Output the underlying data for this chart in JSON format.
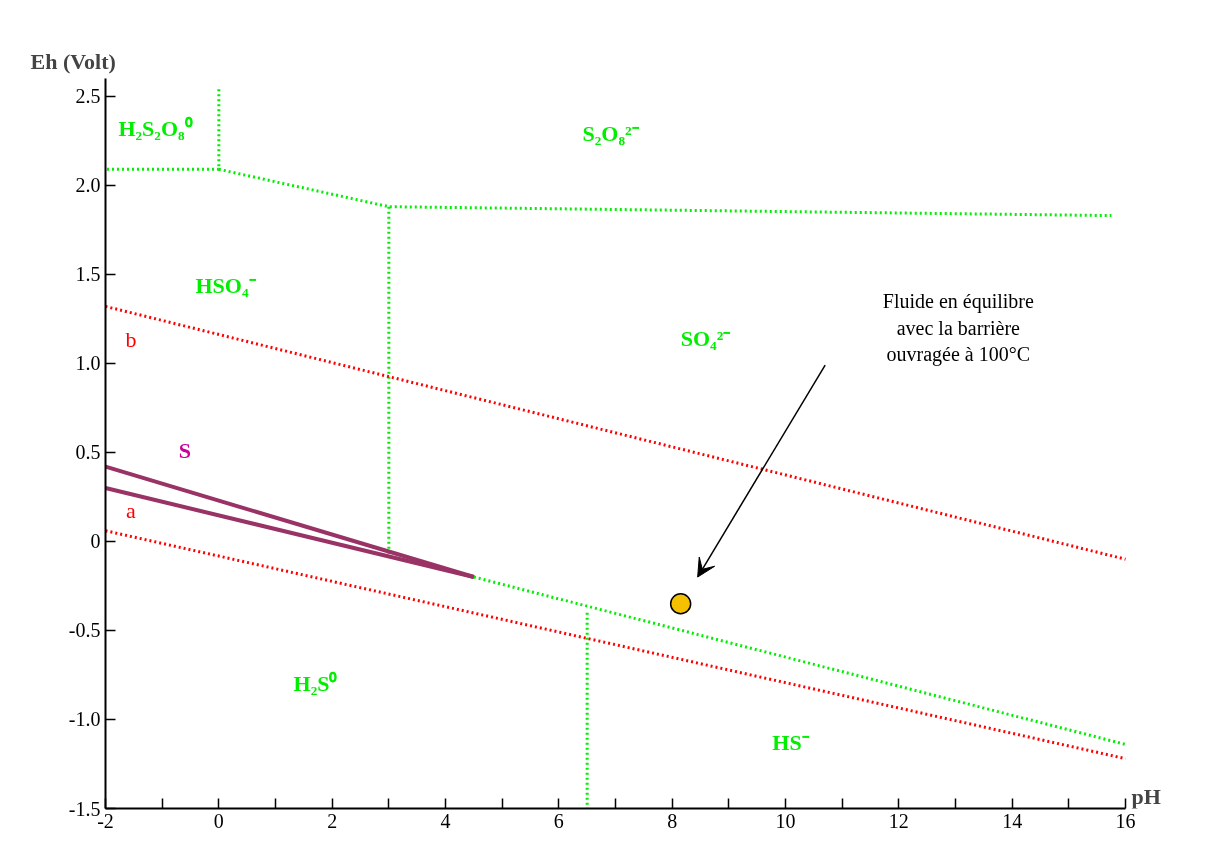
{
  "chart_data": {
    "type": "line",
    "xlabel": "pH",
    "ylabel": "Eh (Volt)",
    "xlim": [
      -2,
      16
    ],
    "ylim": [
      -1.5,
      2.6
    ],
    "xticks": [
      -2,
      {
        "value": -1,
        "label": null
      },
      0,
      {
        "value": 1,
        "label": null
      },
      2,
      {
        "value": 3,
        "label": null
      },
      4,
      {
        "value": 5,
        "label": null
      },
      6,
      {
        "value": 7,
        "label": null
      },
      8,
      {
        "value": 9,
        "label": null
      },
      10,
      {
        "value": 11,
        "label": null
      },
      12,
      {
        "value": 13,
        "label": null
      },
      14,
      {
        "value": 15,
        "label": null
      },
      16
    ],
    "yticks": [
      {
        "value": -1.5,
        "label": "-1.5"
      },
      {
        "value": -1,
        "label": "-1.0"
      },
      {
        "value": -0.5,
        "label": "-0.5"
      },
      0,
      {
        "value": 0.5,
        "label": "0.5"
      },
      {
        "value": 1,
        "label": "1.0"
      },
      {
        "value": 1.5,
        "label": "1.5"
      },
      {
        "value": 2,
        "label": "2.0"
      },
      {
        "value": 2.5,
        "label": "2.5"
      }
    ],
    "grid": false,
    "line_style": "dotted",
    "marker": "none",
    "series": [
      {
        "color": "#00ee00",
        "x": [
          0,
          0,
          -2
        ],
        "values": [
          2.54,
          2.09,
          2.09
        ]
      },
      {
        "color": "#00ee00",
        "x": [
          0,
          3,
          15.75
        ],
        "values": [
          2.09,
          1.88,
          1.83
        ]
      },
      {
        "color": "#00ee00",
        "x": [
          3,
          3
        ],
        "values": [
          1.88,
          -0.07
        ]
      },
      {
        "color": "#00ee00",
        "x": [
          4.5,
          16
        ],
        "values": [
          -0.2,
          -1.14
        ]
      },
      {
        "color": "#00ee00",
        "x": [
          6.5,
          6.5
        ],
        "values": [
          -0.4,
          -1.5
        ]
      },
      {
        "name": "b",
        "color": "#ff0000",
        "x": [
          -2,
          16
        ],
        "values": [
          1.32,
          -0.1
        ]
      },
      {
        "name": "a",
        "color": "#ff0000",
        "x": [
          -2,
          16
        ],
        "values": [
          0.06,
          -1.22
        ]
      },
      {
        "name": "S",
        "color": "#993366",
        "line_style": "solid",
        "x": [
          -2,
          4.5
        ],
        "values": [
          0.42,
          -0.2
        ]
      },
      {
        "color": "#993366",
        "line_style": "solid",
        "x": [
          -2,
          4.5
        ],
        "values": [
          0.3,
          -0.2
        ]
      },
      {
        "type": "scatter",
        "marker": "circle",
        "color": "#f5c000",
        "x": [
          8.15
        ],
        "values": [
          -0.35
        ]
      }
    ],
    "annotations": [
      "H₂S₂O₈⁰",
      "S₂O₈²⁻",
      "HSO₄⁻",
      "SO₄²⁻",
      "H₂S⁰",
      "HS⁻",
      "Fluide en équilibre\navec la barrière\nouvragée à 100°C"
    ]
  }
}
